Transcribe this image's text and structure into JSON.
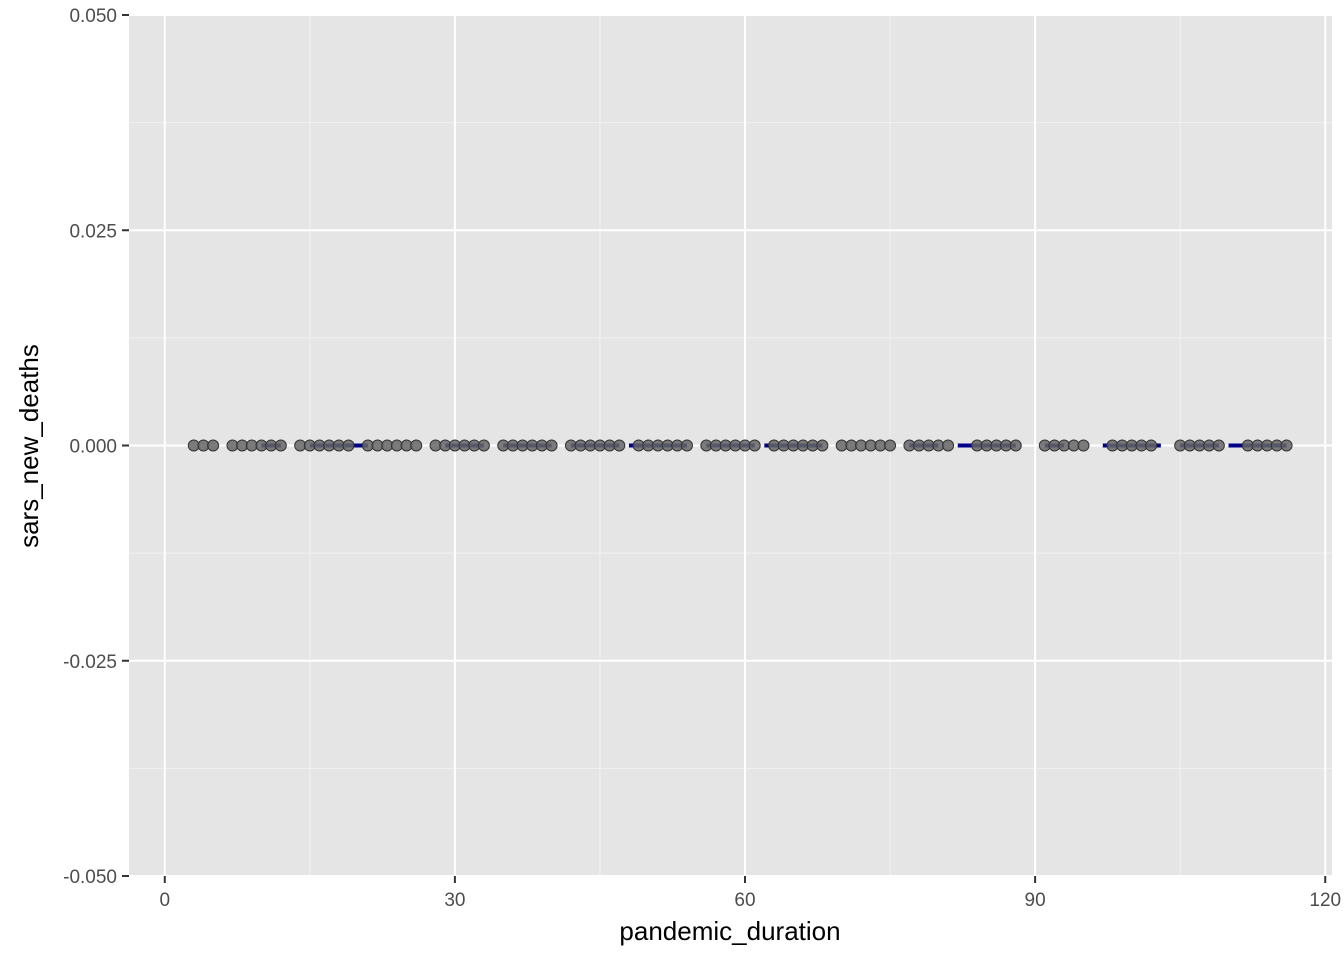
{
  "chart_data": {
    "type": "scatter",
    "xlabel": "pandemic_duration",
    "ylabel": "sars_new_deaths",
    "xlim": [
      -3.7,
      120.7
    ],
    "ylim": [
      -0.05,
      0.05
    ],
    "x_ticks": [
      0,
      30,
      60,
      90,
      120
    ],
    "x_tick_labels": [
      "0",
      "30",
      "60",
      "90",
      "120"
    ],
    "y_ticks": [
      -0.05,
      -0.025,
      0,
      0.025,
      0.05
    ],
    "y_tick_labels": [
      "-0.050",
      "-0.025",
      "0.000",
      "0.025",
      "0.050"
    ],
    "grid": true,
    "series": [
      {
        "kind": "points",
        "color": "#666666",
        "x": [
          3,
          4,
          5,
          7,
          8,
          9,
          10,
          11,
          12,
          14,
          15,
          16,
          17,
          18,
          19,
          21,
          22,
          23,
          24,
          25,
          26,
          28,
          29,
          30,
          31,
          32,
          33,
          35,
          36,
          37,
          38,
          39,
          40,
          42,
          43,
          44,
          45,
          46,
          47,
          49,
          50,
          51,
          52,
          53,
          54,
          56,
          57,
          58,
          59,
          60,
          61,
          63,
          64,
          65,
          66,
          67,
          68,
          70,
          71,
          72,
          73,
          74,
          75,
          77,
          78,
          79,
          80,
          81,
          84,
          85,
          86,
          87,
          88,
          91,
          92,
          93,
          94,
          95,
          98,
          99,
          100,
          101,
          102,
          105,
          106,
          107,
          108,
          109,
          112,
          113,
          114,
          115,
          116
        ],
        "y": [
          0,
          0,
          0,
          0,
          0,
          0,
          0,
          0,
          0,
          0,
          0,
          0,
          0,
          0,
          0,
          0,
          0,
          0,
          0,
          0,
          0,
          0,
          0,
          0,
          0,
          0,
          0,
          0,
          0,
          0,
          0,
          0,
          0,
          0,
          0,
          0,
          0,
          0,
          0,
          0,
          0,
          0,
          0,
          0,
          0,
          0,
          0,
          0,
          0,
          0,
          0,
          0,
          0,
          0,
          0,
          0,
          0,
          0,
          0,
          0,
          0,
          0,
          0,
          0,
          0,
          0,
          0,
          0,
          0,
          0,
          0,
          0,
          0,
          0,
          0,
          0,
          0,
          0,
          0,
          0,
          0,
          0,
          0,
          0,
          0,
          0,
          0,
          0,
          0,
          0,
          0,
          0,
          0
        ]
      },
      {
        "kind": "line",
        "color": "#00008b",
        "segments": [
          [
            10,
            12
          ],
          [
            15,
            21
          ],
          [
            29,
            33
          ],
          [
            35,
            40
          ],
          [
            42,
            47
          ],
          [
            48,
            54
          ],
          [
            56,
            61
          ],
          [
            62,
            68
          ],
          [
            77,
            80
          ],
          [
            82,
            88
          ],
          [
            91,
            93
          ],
          [
            97,
            103
          ],
          [
            105,
            109
          ],
          [
            110,
            116
          ]
        ],
        "y": 0
      }
    ]
  }
}
